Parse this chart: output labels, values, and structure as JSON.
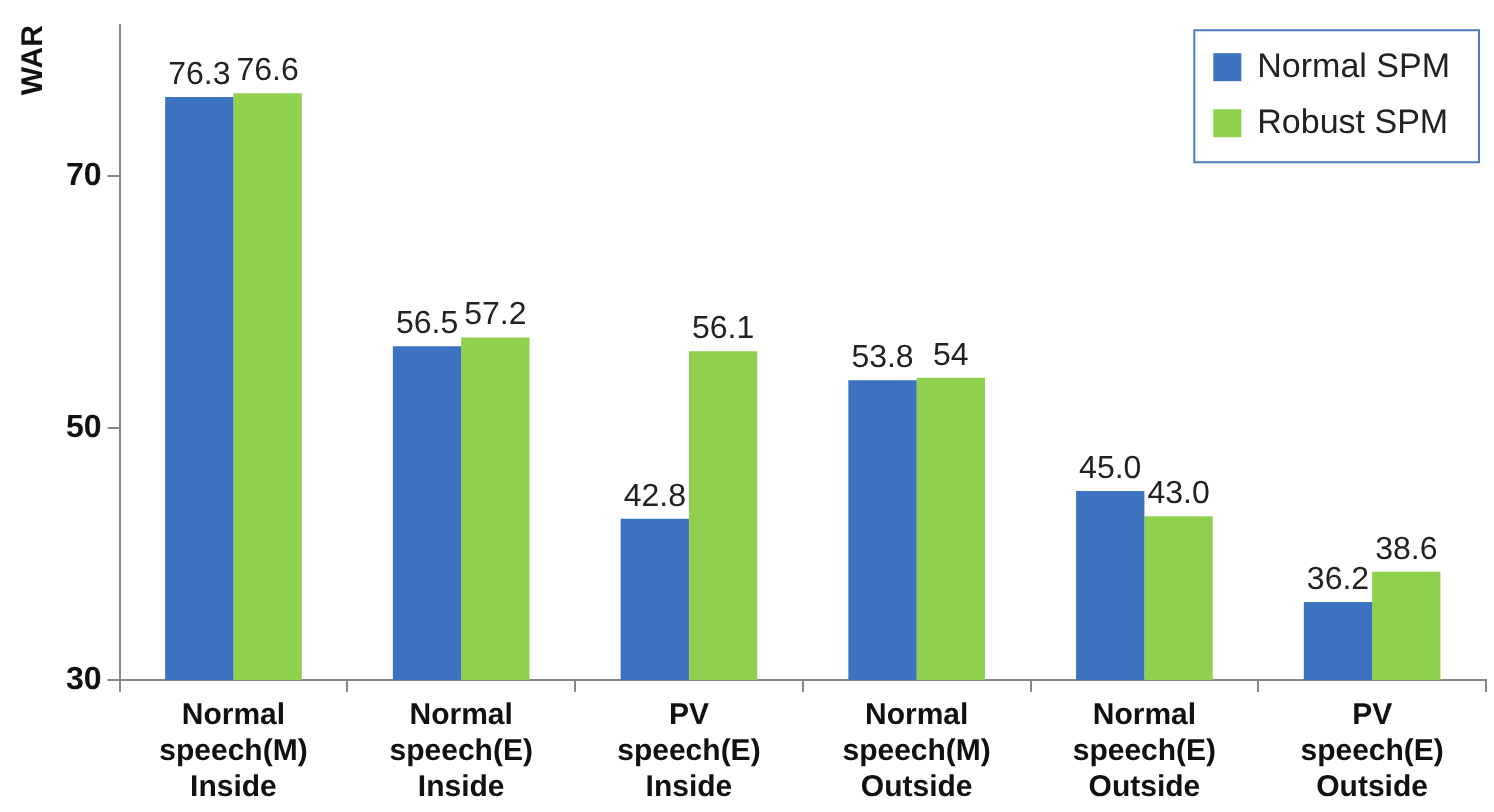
{
  "chart_data": {
    "type": "bar",
    "ylabel": "WAR",
    "categories": [
      "Normal speech(M) Inside",
      "Normal speech(E) Inside",
      "PV speech(E) Inside",
      "Normal speech(M) Outside",
      "Normal speech(E) Outside",
      "PV speech(E) Outside"
    ],
    "series": [
      {
        "name": "Normal SPM",
        "color": "#3d72c0",
        "values": [
          76.3,
          56.5,
          42.8,
          53.8,
          45.0,
          36.2
        ],
        "value_labels": [
          "76.3",
          "56.5",
          "42.8",
          "53.8",
          "45.0",
          "36.2"
        ]
      },
      {
        "name": "Robust SPM",
        "color": "#8fd14f",
        "values": [
          76.6,
          57.2,
          56.1,
          54,
          43.0,
          38.6
        ],
        "value_labels": [
          "76.6",
          "57.2",
          "56.1",
          "54",
          "43.0",
          "38.6"
        ]
      }
    ],
    "ylim": [
      30,
      82
    ],
    "yticks": [
      30,
      50,
      70
    ],
    "grid": false,
    "legend": "top right"
  }
}
